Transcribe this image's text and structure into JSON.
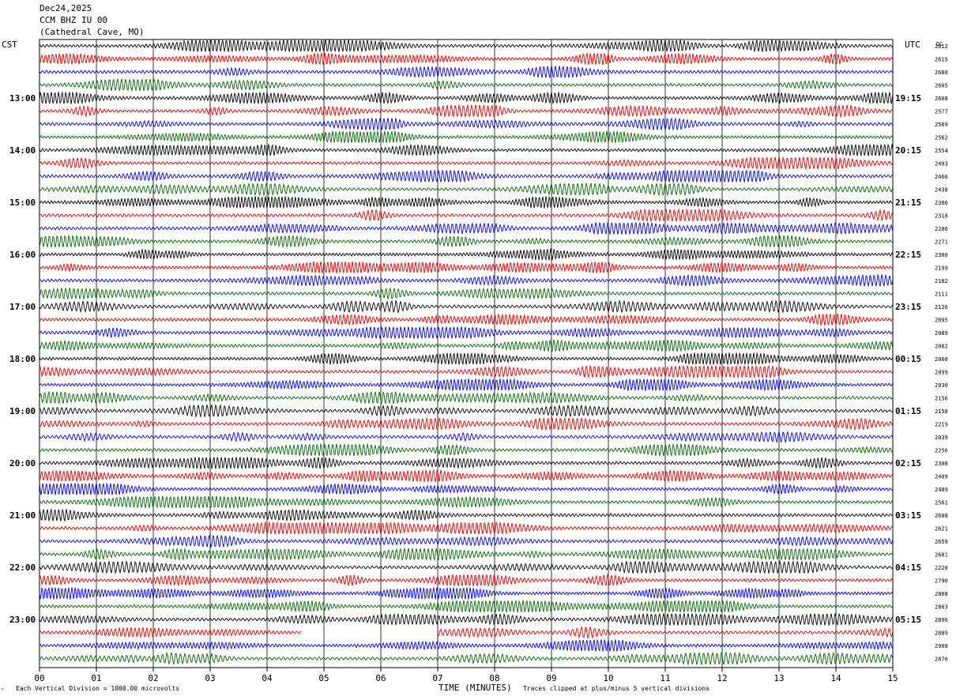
{
  "header": {
    "date": "Dec24,2025",
    "station": "CCM BHZ IU 00",
    "location": "(Cathedral Cave, MO)"
  },
  "left_tz": "CST",
  "right_tz": "UTC",
  "dc_label": "DC",
  "footer": {
    "scale_note": "Each Vertical Division = 1000.00 microvolts",
    "clip_note": "Traces clipped at plus/minus 5 vertical divisions"
  },
  "colors": {
    "trace_cycle": [
      "#000000",
      "#e00000",
      "#0000e0",
      "#006600"
    ],
    "grid": "#000000"
  },
  "chart_data": {
    "type": "line",
    "title": "",
    "xlabel": "TIME (MINUTES)",
    "ylabel": "",
    "x_ticks": [
      "00",
      "01",
      "02",
      "03",
      "04",
      "05",
      "06",
      "07",
      "08",
      "09",
      "10",
      "11",
      "12",
      "13",
      "14",
      "15"
    ],
    "xlim": [
      0,
      15
    ],
    "rows_per_hour": 4,
    "left_hour_labels": [
      "13:00",
      "14:00",
      "15:00",
      "16:00",
      "17:00",
      "18:00",
      "19:00",
      "20:00",
      "21:00",
      "22:00",
      "23:00"
    ],
    "right_hour_labels": [
      "19:15",
      "20:15",
      "21:15",
      "22:15",
      "23:15",
      "00:15",
      "01:15",
      "02:15",
      "03:15",
      "04:15",
      "05:15"
    ],
    "trace_dc_offsets": [
      "2612",
      "2615",
      "2680",
      "2605",
      "2608",
      "2577",
      "2569",
      "2562",
      "2554",
      "2493",
      "2466",
      "2438",
      "2386",
      "2318",
      "2286",
      "2271",
      "2300",
      "2199",
      "2182",
      "2111",
      "2126",
      "2095",
      "2089",
      "2082",
      "2060",
      "2099",
      "2030",
      "2156",
      "2158",
      "2219",
      "2039",
      "2256",
      "2308",
      "2409",
      "2409",
      "2561",
      "2608",
      "2621",
      "2659",
      "2681",
      "2220",
      "2790",
      "2808",
      "2863",
      "2896",
      "2889",
      "2908",
      "2876"
    ],
    "last_trace_partial_end_minute": [
      null,
      4.6
    ]
  }
}
